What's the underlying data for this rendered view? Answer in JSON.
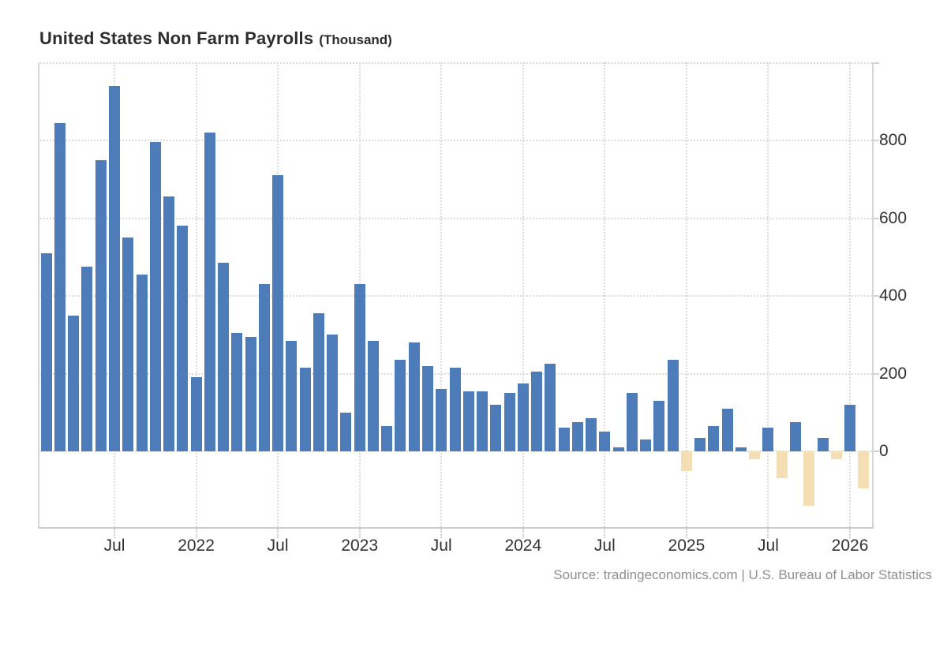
{
  "title": {
    "text": "United States Non Farm Payrolls",
    "unit": "(Thousand)"
  },
  "source": {
    "text": "Source: tradingeconomics.com | U.S. Bureau of Labor Statistics"
  },
  "colors": {
    "positive_bar": "#4d7cb9",
    "negative_bar": "#f4deb4",
    "gridline": "#dcdcdc",
    "axis_line": "#cfcfcf",
    "tick_label": "#333333",
    "title_text": "#2d2d2d",
    "source_text": "#8f8f8f",
    "background": "#ffffff"
  },
  "chart_data": {
    "type": "bar",
    "title": "United States Non Farm Payrolls",
    "ylabel": "",
    "xlabel": "",
    "unit": "Thousand",
    "legend": false,
    "grid": "dotted",
    "ylim": [
      -195,
      1010
    ],
    "y_ticks": [
      0,
      200,
      400,
      600,
      800
    ],
    "y_axis_side": "right",
    "x_tick_positions": [
      5,
      11,
      17,
      23,
      29,
      35,
      41,
      47,
      53,
      59
    ],
    "x_tick_labels": [
      "Jul",
      "2022",
      "Jul",
      "2023",
      "Jul",
      "2024",
      "Jul",
      "2025",
      "Jul",
      "2026"
    ],
    "categories": [
      "Feb 2021",
      "Mar 2021",
      "Apr 2021",
      "May 2021",
      "Jun 2021",
      "Jul 2021",
      "Aug 2021",
      "Sep 2021",
      "Oct 2021",
      "Nov 2021",
      "Dec 2021",
      "Jan 2022",
      "Feb 2022",
      "Mar 2022",
      "Apr 2022",
      "May 2022",
      "Jun 2022",
      "Jul 2022",
      "Aug 2022",
      "Sep 2022",
      "Oct 2022",
      "Nov 2022",
      "Dec 2022",
      "Jan 2023",
      "Feb 2023",
      "Mar 2023",
      "Apr 2023",
      "May 2023",
      "Jun 2023",
      "Jul 2023",
      "Aug 2023",
      "Sep 2023",
      "Oct 2023",
      "Nov 2023",
      "Dec 2023",
      "Jan 2024",
      "Feb 2024",
      "Mar 2024",
      "Apr 2024",
      "May 2024",
      "Jun 2024",
      "Jul 2024",
      "Aug 2024",
      "Sep 2024",
      "Oct 2024",
      "Nov 2024",
      "Dec 2024",
      "Jan 2025",
      "Feb 2025",
      "Mar 2025",
      "Apr 2025",
      "May 2025",
      "Jun 2025",
      "Jul 2025",
      "Aug 2025",
      "Sep 2025",
      "Oct 2025",
      "Nov 2025",
      "Dec 2025",
      "Jan 2026",
      "Feb 2026"
    ],
    "values": [
      510,
      845,
      350,
      475,
      750,
      940,
      550,
      455,
      795,
      655,
      580,
      190,
      820,
      485,
      305,
      295,
      430,
      710,
      285,
      215,
      355,
      300,
      100,
      430,
      285,
      65,
      235,
      280,
      220,
      160,
      215,
      155,
      155,
      120,
      150,
      175,
      205,
      225,
      60,
      75,
      85,
      50,
      10,
      150,
      30,
      130,
      235,
      -50,
      35,
      65,
      110,
      10,
      -20,
      60,
      -70,
      75,
      -140,
      35,
      -20,
      120,
      -95
    ],
    "bar_colors": {
      "positive": "#4d7cb9",
      "negative": "#f4deb4"
    },
    "color_rule": "positive values blue, negative values beige"
  }
}
